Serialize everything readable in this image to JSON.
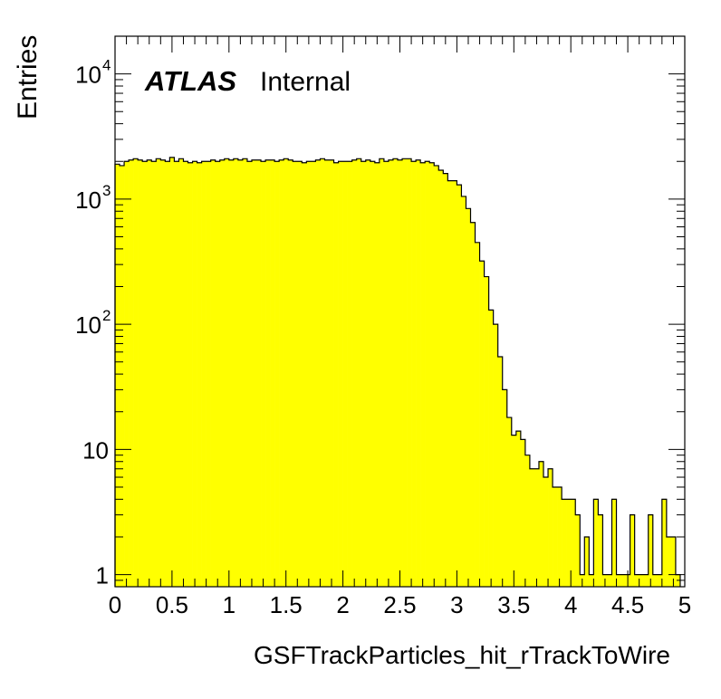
{
  "chart_data": {
    "type": "histogram",
    "title": "",
    "xlabel": "GSFTrackParticles_hit_rTrackToWire",
    "ylabel": "Entries",
    "xlim": [
      0,
      5
    ],
    "ylim": [
      0.8,
      20000
    ],
    "y_scale": "log",
    "grid": false,
    "legend": "none",
    "fill_color": "#ffff00",
    "line_color": "#000000",
    "atlas_label": {
      "bold": "ATLAS",
      "text": "Internal"
    },
    "x_ticks": [
      "0",
      "0.5",
      "1",
      "1.5",
      "2",
      "2.5",
      "3",
      "3.5",
      "4",
      "4.5",
      "5"
    ],
    "y_ticks": [
      {
        "value": 1,
        "base": "1",
        "exp": ""
      },
      {
        "value": 10,
        "base": "10",
        "exp": ""
      },
      {
        "value": 100,
        "base": "10",
        "exp": "2"
      },
      {
        "value": 1000,
        "base": "10",
        "exp": "3"
      },
      {
        "value": 10000,
        "base": "10",
        "exp": "4"
      }
    ],
    "bin_width": 0.04,
    "bin_start": 0,
    "values": [
      1900,
      1850,
      2000,
      2050,
      2100,
      2050,
      2000,
      2050,
      2000,
      2100,
      2050,
      2000,
      2150,
      2000,
      2100,
      2000,
      1950,
      2000,
      1950,
      2000,
      2000,
      2050,
      2000,
      2050,
      2100,
      2050,
      2100,
      2050,
      2100,
      2000,
      2050,
      2050,
      2000,
      2050,
      2050,
      2000,
      2050,
      2100,
      2050,
      2000,
      2000,
      1950,
      2000,
      2000,
      2050,
      2100,
      2050,
      2050,
      1950,
      2000,
      2000,
      2000,
      2050,
      2100,
      2000,
      2050,
      2000,
      1950,
      2100,
      2000,
      2050,
      2100,
      2050,
      2100,
      2100,
      2000,
      2050,
      1950,
      2000,
      1950,
      1850,
      1700,
      1600,
      1400,
      1400,
      1300,
      1050,
      840,
      650,
      450,
      320,
      240,
      130,
      100,
      55,
      30,
      18,
      13,
      14,
      12,
      9,
      7,
      7,
      8,
      6,
      7,
      5,
      5,
      4,
      4
    ],
    "tail_values": [
      4,
      3,
      1,
      2,
      1,
      4,
      3,
      1,
      1,
      4,
      1,
      1,
      1,
      3,
      1,
      1,
      1,
      3,
      1,
      1,
      4,
      2,
      2,
      1
    ]
  }
}
